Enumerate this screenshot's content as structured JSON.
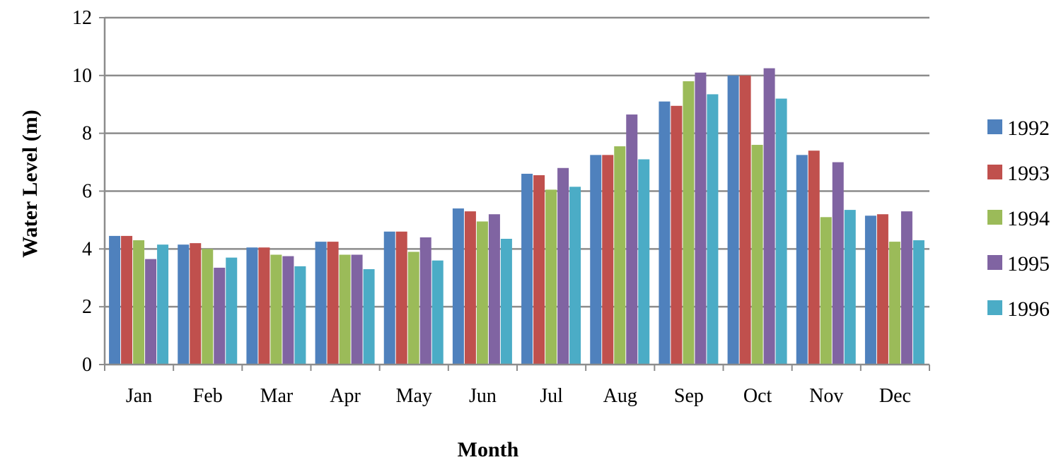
{
  "chart_data": {
    "type": "bar",
    "title": "",
    "xlabel": "Month",
    "ylabel": "Water Level (m)",
    "ylim": [
      0,
      12
    ],
    "yticks": [
      0,
      2,
      4,
      6,
      8,
      10,
      12
    ],
    "grid": true,
    "legend_position": "right",
    "categories": [
      "Jan",
      "Feb",
      "Mar",
      "Apr",
      "May",
      "Jun",
      "Jul",
      "Aug",
      "Sep",
      "Oct",
      "Nov",
      "Dec"
    ],
    "series": [
      {
        "name": "1992",
        "color": "#4F81BD",
        "values": [
          4.45,
          4.15,
          4.05,
          4.25,
          4.6,
          5.4,
          6.6,
          7.25,
          9.1,
          10.0,
          7.25,
          5.15
        ]
      },
      {
        "name": "1993",
        "color": "#C0504D",
        "values": [
          4.45,
          4.2,
          4.05,
          4.25,
          4.6,
          5.3,
          6.55,
          7.25,
          8.95,
          10.0,
          7.4,
          5.2
        ]
      },
      {
        "name": "1994",
        "color": "#9BBB59",
        "values": [
          4.3,
          4.0,
          3.8,
          3.8,
          3.9,
          4.95,
          6.05,
          7.55,
          9.8,
          7.6,
          5.1,
          4.25
        ]
      },
      {
        "name": "1995",
        "color": "#8064A2",
        "values": [
          3.65,
          3.35,
          3.75,
          3.8,
          4.4,
          5.2,
          6.8,
          8.65,
          10.1,
          10.25,
          7.0,
          5.3
        ]
      },
      {
        "name": "1996",
        "color": "#4BACC6",
        "values": [
          4.15,
          3.7,
          3.4,
          3.3,
          3.6,
          4.35,
          6.15,
          7.1,
          9.35,
          9.2,
          5.35,
          4.3
        ]
      }
    ]
  }
}
